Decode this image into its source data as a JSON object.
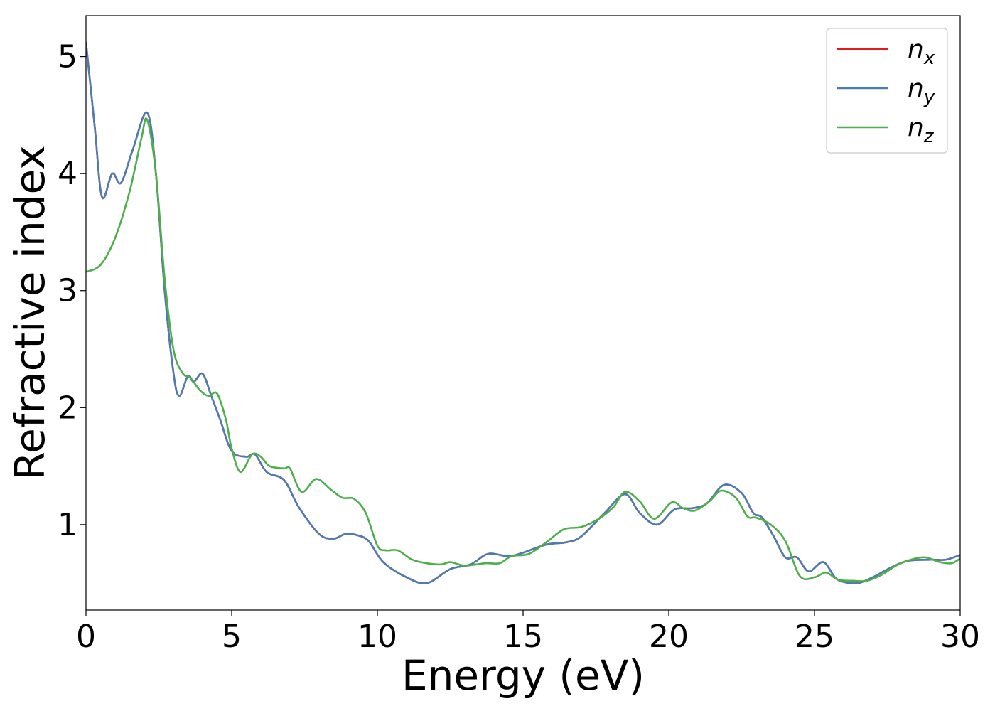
{
  "chart_data": {
    "type": "line",
    "xlabel": "Energy (eV)",
    "ylabel": "Refractive index",
    "xlim": [
      0,
      30
    ],
    "ylim": [
      0.27,
      5.35
    ],
    "xticks": [
      0,
      5,
      10,
      15,
      20,
      25,
      30
    ],
    "yticks": [
      1,
      2,
      3,
      4,
      5
    ],
    "grid": false,
    "legend_position": "top-right",
    "series": [
      {
        "name": "n_x",
        "label_base": "n",
        "label_sub": "x",
        "color": "#e41a1c",
        "x": [
          0,
          0.3,
          0.55,
          0.9,
          1.2,
          1.6,
          2.1,
          2.4,
          2.7,
          3.0,
          3.2,
          3.5,
          3.7,
          4.0,
          4.3,
          4.6,
          5.0,
          5.5,
          5.8,
          6.2,
          6.8,
          7.3,
          8.0,
          8.5,
          8.9,
          9.3,
          9.7,
          10.2,
          11.0,
          11.7,
          12.5,
          13.2,
          13.8,
          14.5,
          15.0,
          15.8,
          16.5,
          17.0,
          17.8,
          18.5,
          19.0,
          19.6,
          20.2,
          20.8,
          21.3,
          21.9,
          22.5,
          22.9,
          23.2,
          23.6,
          24.0,
          24.4,
          24.8,
          25.3,
          25.7,
          26.0,
          26.5,
          27.0,
          27.6,
          28.2,
          29.0,
          29.5,
          30.0
        ],
        "y": [
          5.12,
          4.4,
          3.8,
          4.0,
          3.92,
          4.2,
          4.52,
          4.0,
          3.0,
          2.3,
          2.1,
          2.27,
          2.22,
          2.29,
          2.1,
          1.9,
          1.63,
          1.58,
          1.6,
          1.45,
          1.38,
          1.15,
          0.92,
          0.88,
          0.92,
          0.91,
          0.86,
          0.68,
          0.55,
          0.5,
          0.62,
          0.66,
          0.75,
          0.73,
          0.76,
          0.83,
          0.85,
          0.9,
          1.1,
          1.26,
          1.1,
          1.0,
          1.13,
          1.14,
          1.18,
          1.34,
          1.27,
          1.1,
          1.06,
          0.9,
          0.72,
          0.72,
          0.6,
          0.68,
          0.55,
          0.51,
          0.5,
          0.55,
          0.63,
          0.69,
          0.7,
          0.7,
          0.74
        ]
      },
      {
        "name": "n_y",
        "label_base": "n",
        "label_sub": "y",
        "color": "#4a7db3",
        "x": [
          0,
          0.3,
          0.55,
          0.9,
          1.2,
          1.6,
          2.1,
          2.4,
          2.7,
          3.0,
          3.2,
          3.5,
          3.7,
          4.0,
          4.3,
          4.6,
          5.0,
          5.5,
          5.8,
          6.2,
          6.8,
          7.3,
          8.0,
          8.5,
          8.9,
          9.3,
          9.7,
          10.2,
          11.0,
          11.7,
          12.5,
          13.2,
          13.8,
          14.5,
          15.0,
          15.8,
          16.5,
          17.0,
          17.8,
          18.5,
          19.0,
          19.6,
          20.2,
          20.8,
          21.3,
          21.9,
          22.5,
          22.9,
          23.2,
          23.6,
          24.0,
          24.4,
          24.8,
          25.3,
          25.7,
          26.0,
          26.5,
          27.0,
          27.6,
          28.2,
          29.0,
          29.5,
          30.0
        ],
        "y": [
          5.12,
          4.4,
          3.8,
          4.0,
          3.92,
          4.2,
          4.52,
          4.0,
          3.0,
          2.3,
          2.1,
          2.27,
          2.22,
          2.29,
          2.1,
          1.9,
          1.63,
          1.58,
          1.6,
          1.45,
          1.38,
          1.15,
          0.92,
          0.88,
          0.92,
          0.91,
          0.86,
          0.68,
          0.55,
          0.5,
          0.62,
          0.66,
          0.75,
          0.73,
          0.76,
          0.83,
          0.85,
          0.9,
          1.1,
          1.26,
          1.1,
          1.0,
          1.13,
          1.14,
          1.18,
          1.34,
          1.27,
          1.1,
          1.06,
          0.9,
          0.72,
          0.72,
          0.6,
          0.68,
          0.55,
          0.51,
          0.5,
          0.55,
          0.63,
          0.69,
          0.7,
          0.7,
          0.74
        ]
      },
      {
        "name": "n_z",
        "label_base": "n",
        "label_sub": "z",
        "color": "#4daf4a",
        "x": [
          0,
          0.5,
          1.0,
          1.5,
          1.9,
          2.1,
          2.4,
          2.7,
          3.0,
          3.3,
          3.6,
          3.9,
          4.2,
          4.5,
          4.8,
          5.0,
          5.3,
          5.7,
          6.0,
          6.3,
          6.8,
          7.0,
          7.4,
          7.9,
          8.4,
          8.8,
          9.2,
          9.6,
          10.0,
          10.3,
          10.7,
          11.2,
          11.7,
          12.2,
          12.5,
          13.0,
          13.7,
          14.2,
          14.6,
          15.2,
          15.8,
          16.4,
          17.0,
          17.6,
          18.1,
          18.5,
          19.0,
          19.5,
          20.1,
          20.5,
          20.9,
          21.4,
          21.8,
          22.3,
          22.7,
          23.0,
          23.5,
          24.0,
          24.5,
          25.0,
          25.4,
          25.8,
          26.3,
          26.8,
          27.3,
          27.8,
          28.3,
          28.8,
          29.3,
          29.7,
          30.0
        ],
        "y": [
          3.16,
          3.22,
          3.45,
          3.85,
          4.3,
          4.46,
          4.0,
          3.1,
          2.5,
          2.3,
          2.25,
          2.15,
          2.1,
          2.12,
          1.9,
          1.65,
          1.45,
          1.6,
          1.58,
          1.5,
          1.48,
          1.48,
          1.28,
          1.39,
          1.3,
          1.23,
          1.22,
          1.1,
          0.82,
          0.78,
          0.78,
          0.7,
          0.67,
          0.66,
          0.68,
          0.65,
          0.67,
          0.67,
          0.73,
          0.75,
          0.85,
          0.96,
          0.98,
          1.05,
          1.15,
          1.28,
          1.2,
          1.05,
          1.19,
          1.14,
          1.12,
          1.2,
          1.29,
          1.23,
          1.07,
          1.06,
          1.0,
          0.86,
          0.56,
          0.55,
          0.59,
          0.53,
          0.52,
          0.52,
          0.57,
          0.65,
          0.7,
          0.72,
          0.68,
          0.67,
          0.71
        ]
      }
    ]
  }
}
